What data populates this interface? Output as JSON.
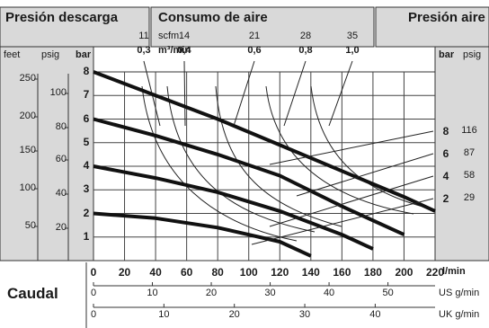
{
  "headers": {
    "left": "Presión descarga",
    "center": "Consumo de aire",
    "right": "Presión aire"
  },
  "left_units": {
    "feet": "feet",
    "psig": "psig",
    "bar": "bar"
  },
  "right_units": {
    "bar": "bar",
    "psig": "psig"
  },
  "scfm_label": "scfm",
  "m3_label": "m³/min",
  "scfm_values": [
    "11",
    "14",
    "21",
    "28",
    "35"
  ],
  "m3_values": [
    "0,3",
    "0,4",
    "0,6",
    "0,8",
    "1,0"
  ],
  "feet_ticks": [
    "250",
    "200",
    "150",
    "100",
    "50"
  ],
  "psig_ticks": [
    "100",
    "80",
    "60",
    "40",
    "20"
  ],
  "bar_ticks": [
    "8",
    "7",
    "6",
    "5",
    "4",
    "3",
    "2",
    "1"
  ],
  "right_bar": [
    "8",
    "6",
    "4",
    "2"
  ],
  "right_psig": [
    "116",
    "87",
    "58",
    "29"
  ],
  "caudal_label": "Caudal",
  "lmin_unit": "l/min",
  "usg_unit": "US g/min",
  "ukg_unit": "UK g/min",
  "lmin_ticks": [
    "0",
    "20",
    "40",
    "60",
    "80",
    "100",
    "120",
    "140",
    "160",
    "180",
    "200",
    "220"
  ],
  "usg_ticks": [
    "0",
    "10",
    "20",
    "30",
    "40",
    "50"
  ],
  "ukg_ticks": [
    "0",
    "10",
    "20",
    "30",
    "40"
  ],
  "chart_data": {
    "type": "line",
    "title": "",
    "xlabel": "Caudal",
    "xunit": "l/min",
    "ylabel": "Presión descarga",
    "yunit": "bar",
    "xlim": [
      0,
      220
    ],
    "ylim": [
      0,
      8
    ],
    "grid": true,
    "series": [
      {
        "name": "8",
        "x": [
          0,
          40,
          80,
          120,
          160,
          200,
          220
        ],
        "y": [
          8,
          7,
          6,
          4.9,
          3.8,
          2.7,
          2.1
        ]
      },
      {
        "name": "6",
        "x": [
          0,
          40,
          80,
          120,
          160,
          200
        ],
        "y": [
          6,
          5.3,
          4.5,
          3.6,
          2.3,
          1.1
        ]
      },
      {
        "name": "4",
        "x": [
          0,
          40,
          80,
          120,
          160,
          180
        ],
        "y": [
          4,
          3.5,
          2.9,
          2.1,
          1.1,
          0.5
        ]
      },
      {
        "name": "2",
        "x": [
          0,
          40,
          80,
          120,
          140
        ],
        "y": [
          2,
          1.8,
          1.4,
          0.8,
          0.2
        ]
      }
    ]
  }
}
